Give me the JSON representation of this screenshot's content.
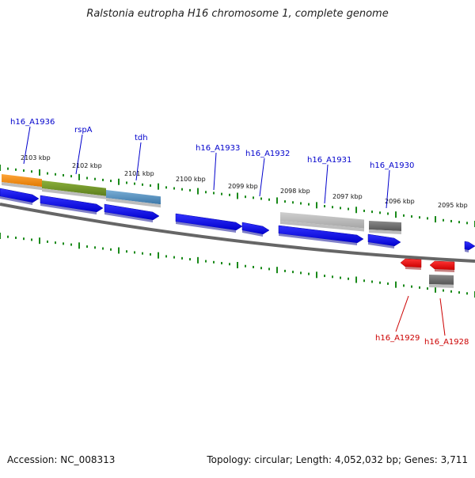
{
  "title": "Ralstonia eutropha H16 chromosome 1, complete genome",
  "footer": {
    "accession": "Accession: NC_008313",
    "summary": "Topology: circular; Length: 4,052,032 bp; Genes: 3,711"
  },
  "colors": {
    "forward_gene": "#0000ff",
    "reverse_gene": "#ff0000",
    "forward_label": "#0000cc",
    "reverse_label": "#cc0000",
    "ticks": "#1a8a1a",
    "backbone": "#666666"
  },
  "kbp_labels": [
    "2103 kbp",
    "2102 kbp",
    "2101 kbp",
    "2100 kbp",
    "2099 kbp",
    "2098 kbp",
    "2097 kbp",
    "2096 kbp",
    "2095 kbp"
  ],
  "forward_gene_labels": [
    "h16_A1936",
    "rspA",
    "tdh",
    "h16_A1933",
    "h16_A1932",
    "h16_A1931",
    "h16_A1930"
  ],
  "reverse_gene_labels": [
    "h16_A1929",
    "h16_A1928"
  ],
  "feature_colors": [
    "orange",
    "olive-green",
    "steel-blue",
    "light-gray",
    "dark-gray"
  ]
}
